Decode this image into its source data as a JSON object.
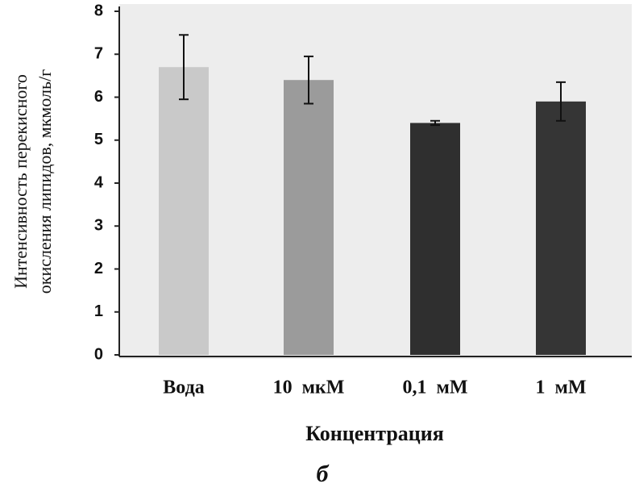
{
  "chart_data": {
    "type": "bar",
    "ylabel": [
      "Интенсивность перекисного",
      "окисления липидов, мкмоль/г"
    ],
    "xlabel": "Концентрация",
    "caption": "б",
    "categories": [
      "Вода",
      "10  мкМ",
      "0,1  мМ",
      "1  мМ"
    ],
    "values": [
      6.7,
      6.4,
      5.4,
      5.9
    ],
    "errors": [
      0.75,
      0.55,
      0.05,
      0.45
    ],
    "colors": [
      "#c9c9c9",
      "#9b9b9b",
      "#2f2f2f",
      "#353535"
    ],
    "ylim": [
      0,
      8
    ],
    "yticks": [
      0,
      1,
      2,
      3,
      4,
      5,
      6,
      7,
      8
    ]
  }
}
